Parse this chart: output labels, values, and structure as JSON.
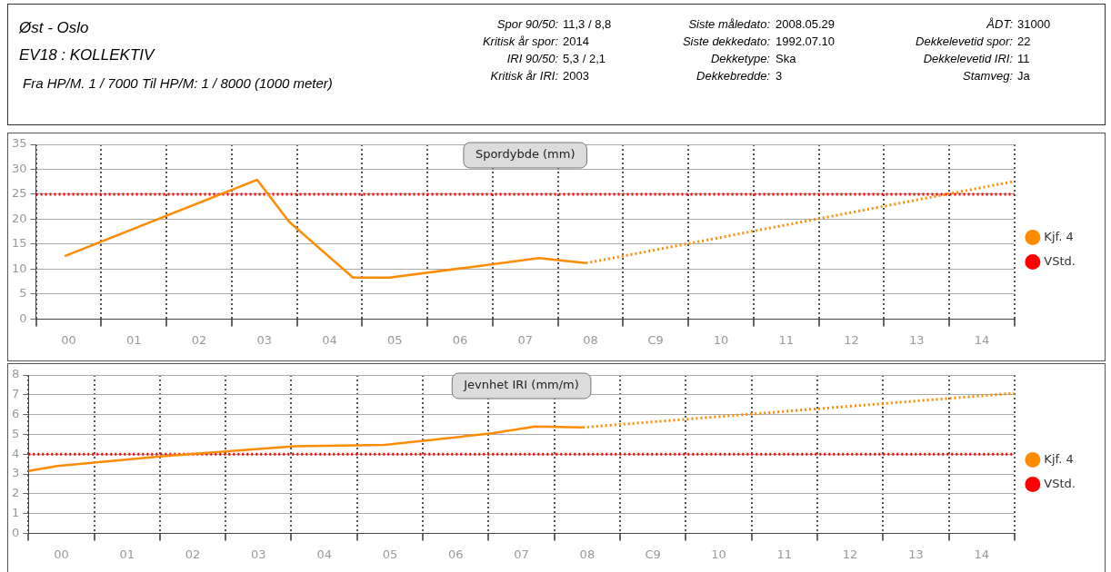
{
  "chart_data": [
    {
      "type": "other",
      "title": "Øst - Oslo",
      "subtitle": "EV18 : KOLLEKTIV",
      "annotations": [
        "Fra HP/M. 1 / 7000 Til HP/M: 1 / 8000 (1000 meter)",
        "Spor 90/50:",
        "11,3 / 8,8",
        "Kritisk år spor:",
        "2014",
        "IRI 90/50:",
        "5,3 / 2,1",
        "Kritisk år IRI:",
        "2003",
        "Siste måledato:",
        "2008.05.29",
        "Siste dekkedato:",
        "1992.07.10",
        "Dekketype:",
        "Ska",
        "Dekkebredde:",
        "3",
        "ÅDT:",
        "31000",
        "Dekkelevetid spor:",
        "22",
        "Dekkelevetid IRI:",
        "11",
        "Stamveg:",
        "Ja"
      ]
    },
    {
      "type": "line",
      "title": "Spordybde (mm)",
      "xlim": [
        -0.5,
        14.5
      ],
      "xticks": [
        {
          "value": -0.5,
          "label": null
        },
        {
          "value": 0,
          "label": "00"
        },
        {
          "value": 0.5,
          "label": null
        },
        {
          "value": 1,
          "label": "01"
        },
        {
          "value": 1.5,
          "label": null
        },
        {
          "value": 2,
          "label": "02"
        },
        {
          "value": 2.5,
          "label": null
        },
        {
          "value": 3,
          "label": "03"
        },
        {
          "value": 3.5,
          "label": null
        },
        {
          "value": 4,
          "label": "04"
        },
        {
          "value": 4.5,
          "label": null
        },
        {
          "value": 5,
          "label": "05"
        },
        {
          "value": 5.5,
          "label": null
        },
        {
          "value": 6,
          "label": "06"
        },
        {
          "value": 6.5,
          "label": null
        },
        {
          "value": 7,
          "label": "07"
        },
        {
          "value": 7.5,
          "label": null
        },
        {
          "value": 8,
          "label": "08"
        },
        {
          "value": 8.5,
          "label": null
        },
        {
          "value": 9,
          "label": "C9"
        },
        {
          "value": 9.5,
          "label": null
        },
        {
          "value": 10,
          "label": "10"
        },
        {
          "value": 10.5,
          "label": null
        },
        {
          "value": 11,
          "label": "11"
        },
        {
          "value": 11.5,
          "label": null
        },
        {
          "value": 12,
          "label": "12"
        },
        {
          "value": 12.5,
          "label": null
        },
        {
          "value": 13,
          "label": "13"
        },
        {
          "value": 13.5,
          "label": null
        },
        {
          "value": 14,
          "label": "14"
        },
        {
          "value": 14.5,
          "label": null
        }
      ],
      "ylim": [
        0,
        35
      ],
      "yticks": [
        0,
        5,
        10,
        15,
        20,
        25,
        30,
        35
      ],
      "grid": true,
      "legend": "right",
      "marker": "none",
      "series": [
        {
          "name": "Kjf. 4",
          "color": "#ff8c00",
          "x": [
            -0.06,
            2.89,
            3.38,
            4.36,
            4.92,
            7.21,
            7.93
          ],
          "values": [
            12.6,
            27.9,
            19.5,
            8.3,
            8.3,
            12.2,
            11.2
          ],
          "line_style": "solid"
        },
        {
          "color": "#ff8c00",
          "x": [
            7.93,
            14.5
          ],
          "values": [
            11.2,
            27.6
          ],
          "line_style": "dotted"
        },
        {
          "name": "VStd.",
          "color": "#ff0000",
          "x": [
            -0.5,
            14.5
          ],
          "values": [
            25,
            25
          ],
          "line_style": "dotted"
        }
      ]
    },
    {
      "type": "line",
      "title": "Jevnhet IRI (mm/m)",
      "xlim": [
        -0.5,
        14.5
      ],
      "xticks": [
        {
          "value": -0.5,
          "label": null
        },
        {
          "value": 0,
          "label": "00"
        },
        {
          "value": 0.5,
          "label": null
        },
        {
          "value": 1,
          "label": "01"
        },
        {
          "value": 1.5,
          "label": null
        },
        {
          "value": 2,
          "label": "02"
        },
        {
          "value": 2.5,
          "label": null
        },
        {
          "value": 3,
          "label": "03"
        },
        {
          "value": 3.5,
          "label": null
        },
        {
          "value": 4,
          "label": "04"
        },
        {
          "value": 4.5,
          "label": null
        },
        {
          "value": 5,
          "label": "05"
        },
        {
          "value": 5.5,
          "label": null
        },
        {
          "value": 6,
          "label": "06"
        },
        {
          "value": 6.5,
          "label": null
        },
        {
          "value": 7,
          "label": "07"
        },
        {
          "value": 7.5,
          "label": null
        },
        {
          "value": 8,
          "label": "08"
        },
        {
          "value": 8.5,
          "label": null
        },
        {
          "value": 9,
          "label": "C9"
        },
        {
          "value": 9.5,
          "label": null
        },
        {
          "value": 10,
          "label": "10"
        },
        {
          "value": 10.5,
          "label": null
        },
        {
          "value": 11,
          "label": "11"
        },
        {
          "value": 11.5,
          "label": null
        },
        {
          "value": 12,
          "label": "12"
        },
        {
          "value": 12.5,
          "label": null
        },
        {
          "value": 13,
          "label": "13"
        },
        {
          "value": 13.5,
          "label": null
        },
        {
          "value": 14,
          "label": "14"
        },
        {
          "value": 14.5,
          "label": null
        }
      ],
      "ylim": [
        0,
        8
      ],
      "yticks": [
        0,
        1,
        2,
        3,
        4,
        5,
        6,
        7,
        8
      ],
      "grid": true,
      "legend": "right",
      "marker": "none",
      "series": [
        {
          "name": "Kjf. 4",
          "color": "#ff8c00",
          "x": [
            -0.5,
            -0.06,
            1.5,
            2.54,
            3.55,
            4.92,
            6.55,
            7.21,
            7.93
          ],
          "values": [
            3.15,
            3.4,
            3.88,
            4.15,
            4.4,
            4.47,
            5.05,
            5.4,
            5.35
          ],
          "line_style": "solid"
        },
        {
          "color": "#ff8c00",
          "x": [
            7.93,
            14.5
          ],
          "values": [
            5.35,
            7.08
          ],
          "line_style": "dotted"
        },
        {
          "name": "VStd.",
          "color": "#ff0000",
          "x": [
            -0.5,
            14.5
          ],
          "values": [
            4,
            4
          ],
          "line_style": "dotted"
        }
      ]
    }
  ]
}
